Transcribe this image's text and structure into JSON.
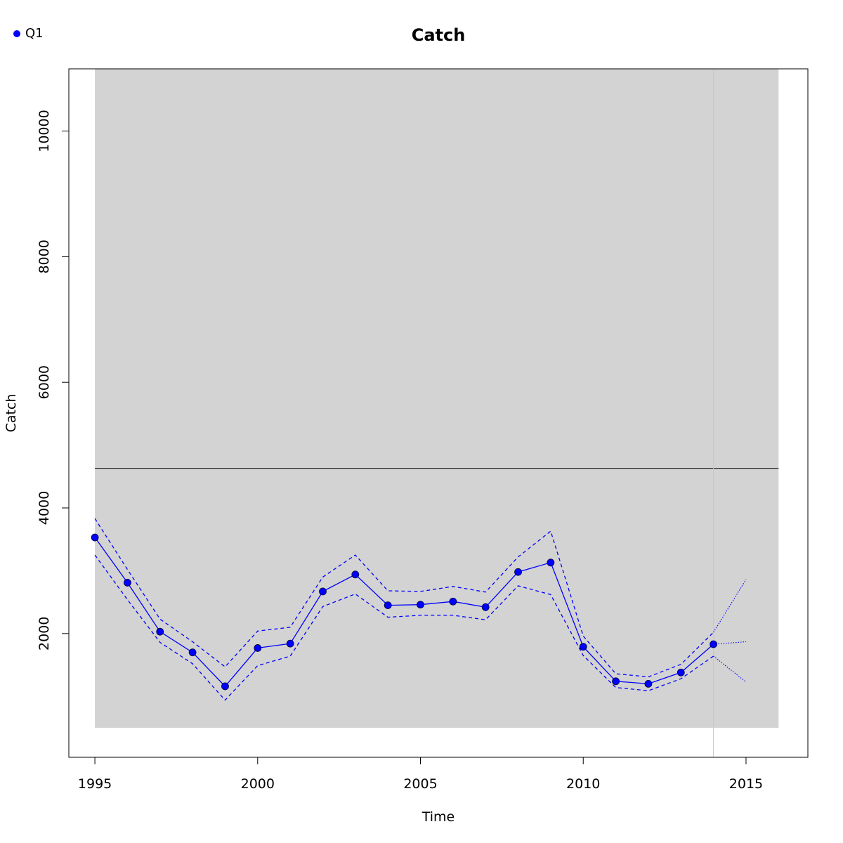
{
  "chart_data": {
    "type": "line",
    "title": "Catch",
    "xlabel": "Time",
    "ylabel": "Catch",
    "xlim": [
      1994.2,
      2016.9
    ],
    "ylim": [
      30,
      10990
    ],
    "x_ticks": [
      1995,
      2000,
      2005,
      2010,
      2015
    ],
    "y_ticks": [
      2000,
      4000,
      6000,
      8000,
      10000
    ],
    "legend": {
      "position": "top-left",
      "entries": [
        "Q1"
      ]
    },
    "reference_band": {
      "x": [
        1995,
        2016
      ],
      "y": [
        500,
        11000
      ],
      "color": "#d3d3d3"
    },
    "reference_line_y": 4630,
    "reference_line_x": 2014,
    "series": [
      {
        "name": "Q1",
        "color": "#0000ff",
        "x": [
          1995,
          1996,
          1997,
          1998,
          1999,
          2000,
          2001,
          2002,
          2003,
          2004,
          2005,
          2006,
          2007,
          2008,
          2009,
          2010,
          2011,
          2012,
          2013,
          2014
        ],
        "values": [
          3530,
          2810,
          2030,
          1700,
          1160,
          1770,
          1840,
          2670,
          2940,
          2450,
          2460,
          2510,
          2420,
          2980,
          3130,
          1790,
          1240,
          1200,
          1380,
          1830
        ],
        "upper": [
          3830,
          3020,
          2230,
          1870,
          1470,
          2040,
          2100,
          2900,
          3250,
          2680,
          2670,
          2750,
          2660,
          3220,
          3630,
          1960,
          1360,
          1310,
          1510,
          2020
        ],
        "lower": [
          3250,
          2540,
          1860,
          1520,
          940,
          1490,
          1640,
          2430,
          2630,
          2260,
          2290,
          2290,
          2220,
          2760,
          2620,
          1650,
          1140,
          1090,
          1280,
          1640
        ]
      }
    ],
    "forecast": {
      "x": [
        2014,
        2015
      ],
      "values": [
        1830,
        1870
      ],
      "upper": [
        2020,
        2860
      ],
      "lower": [
        1640,
        1230
      ]
    }
  }
}
